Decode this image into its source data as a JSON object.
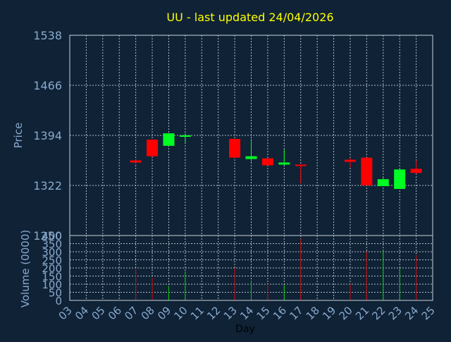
{
  "chart_data": {
    "type": "candlestick",
    "title": "UU - last updated 24/04/2026",
    "xlabel": "Day",
    "price_panel": {
      "ylabel": "Price",
      "ylim": [
        1250,
        1538
      ],
      "yticks": [
        "1538",
        "1466",
        "1394",
        "1322",
        "1250"
      ],
      "grid": true
    },
    "volume_panel": {
      "ylabel": "Volume (0000)",
      "ylim": [
        0,
        400
      ],
      "yticks": [
        "400",
        "350",
        "300",
        "250",
        "200",
        "150",
        "100",
        "50",
        "0"
      ],
      "grid": true
    },
    "x_ticks": [
      "03",
      "04",
      "05",
      "06",
      "07",
      "08",
      "09",
      "10",
      "11",
      "12",
      "13",
      "14",
      "15",
      "16",
      "17",
      "18",
      "19",
      "20",
      "21",
      "22",
      "23",
      "24",
      "25"
    ],
    "candles": [
      {
        "day": "07",
        "open": 1358,
        "high": 1359,
        "low": 1354,
        "close": 1355
      },
      {
        "day": "08",
        "open": 1388,
        "high": 1388,
        "low": 1364,
        "close": 1364
      },
      {
        "day": "09",
        "open": 1379,
        "high": 1397,
        "low": 1379,
        "close": 1397
      },
      {
        "day": "10",
        "open": 1392,
        "high": 1397,
        "low": 1383,
        "close": 1394
      },
      {
        "day": "13",
        "open": 1389,
        "high": 1389,
        "low": 1362,
        "close": 1362
      },
      {
        "day": "14",
        "open": 1360,
        "high": 1389,
        "low": 1356,
        "close": 1364
      },
      {
        "day": "15",
        "open": 1361,
        "high": 1361,
        "low": 1351,
        "close": 1351
      },
      {
        "day": "16",
        "open": 1352,
        "high": 1374,
        "low": 1351,
        "close": 1355
      },
      {
        "day": "17",
        "open": 1352,
        "high": 1352,
        "low": 1325,
        "close": 1350
      },
      {
        "day": "20",
        "open": 1359,
        "high": 1362,
        "low": 1348,
        "close": 1356
      },
      {
        "day": "21",
        "open": 1362,
        "high": 1362,
        "low": 1322,
        "close": 1322
      },
      {
        "day": "22",
        "open": 1321,
        "high": 1333,
        "low": 1321,
        "close": 1331
      },
      {
        "day": "23",
        "open": 1317,
        "high": 1345,
        "low": 1317,
        "close": 1345
      },
      {
        "day": "24",
        "open": 1346,
        "high": 1358,
        "low": 1339,
        "close": 1340
      }
    ],
    "volume": [
      {
        "day": "07",
        "value": 200,
        "direction": "down"
      },
      {
        "day": "08",
        "value": 140,
        "direction": "down"
      },
      {
        "day": "09",
        "value": 90,
        "direction": "up"
      },
      {
        "day": "10",
        "value": 180,
        "direction": "up"
      },
      {
        "day": "13",
        "value": 200,
        "direction": "down"
      },
      {
        "day": "14",
        "value": 120,
        "direction": "up"
      },
      {
        "day": "15",
        "value": 100,
        "direction": "down"
      },
      {
        "day": "16",
        "value": 95,
        "direction": "up"
      },
      {
        "day": "17",
        "value": 380,
        "direction": "down"
      },
      {
        "day": "20",
        "value": 100,
        "direction": "down"
      },
      {
        "day": "21",
        "value": 300,
        "direction": "down"
      },
      {
        "day": "22",
        "value": 310,
        "direction": "up"
      },
      {
        "day": "23",
        "value": 200,
        "direction": "up"
      },
      {
        "day": "24",
        "value": 280,
        "direction": "down"
      }
    ],
    "colors": {
      "background": "#0f2236",
      "plot_background": "#0f2236",
      "frame": "#c8d2dc",
      "grid": "#b4bcc6",
      "axis_text": "#8aaacc",
      "title": "#ffff00",
      "day_label": "#000000",
      "up": "#00ff22",
      "down": "#ff0000",
      "volume_up": "#00cc00",
      "volume_down": "#cc0000"
    }
  }
}
